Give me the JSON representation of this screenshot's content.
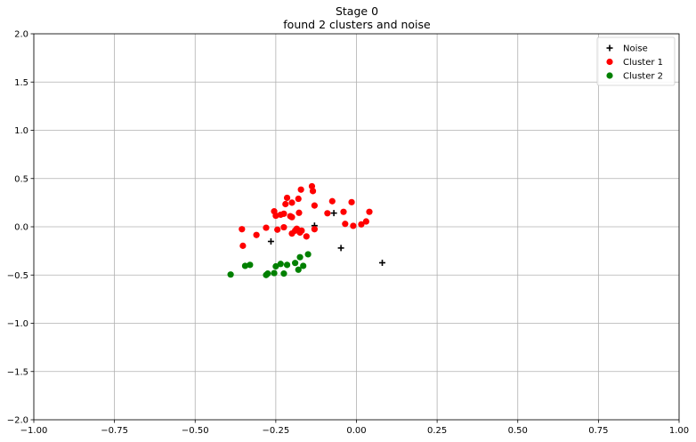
{
  "chart_data": {
    "type": "scatter",
    "title_lines": [
      "Stage 0",
      "found 2 clusters and noise"
    ],
    "xlabel": "",
    "ylabel": "",
    "xlim": [
      -1.0,
      1.0
    ],
    "ylim": [
      -2.0,
      2.0
    ],
    "x_ticks": [
      -1.0,
      -0.75,
      -0.5,
      -0.25,
      0.0,
      0.25,
      0.5,
      0.75,
      1.0
    ],
    "x_tick_labels": [
      "−1.00",
      "−0.75",
      "−0.50",
      "−0.25",
      "0.00",
      "0.25",
      "0.50",
      "0.75",
      "1.00"
    ],
    "y_ticks": [
      -2.0,
      -1.5,
      -1.0,
      -0.5,
      0.0,
      0.5,
      1.0,
      1.5,
      2.0
    ],
    "y_tick_labels": [
      "−2.0",
      "−1.5",
      "−1.0",
      "−0.5",
      "0.0",
      "0.5",
      "1.0",
      "1.5",
      "2.0"
    ],
    "grid": true,
    "legend_position": "top-right",
    "series": [
      {
        "name": "Noise",
        "marker": "plus",
        "color": "#000000",
        "points": [
          [
            -0.265,
            -0.152
          ],
          [
            -0.13,
            0.012
          ],
          [
            -0.07,
            0.142
          ],
          [
            -0.048,
            -0.22
          ],
          [
            0.08,
            -0.373
          ]
        ]
      },
      {
        "name": "Cluster 1",
        "marker": "circle",
        "color": "#ff0000",
        "points": [
          [
            -0.355,
            -0.025
          ],
          [
            -0.352,
            -0.197
          ],
          [
            -0.31,
            -0.085
          ],
          [
            -0.28,
            -0.01
          ],
          [
            -0.255,
            0.16
          ],
          [
            -0.25,
            0.115
          ],
          [
            -0.245,
            -0.03
          ],
          [
            -0.235,
            0.125
          ],
          [
            -0.225,
            0.135
          ],
          [
            -0.225,
            -0.005
          ],
          [
            -0.22,
            0.235
          ],
          [
            -0.215,
            0.3
          ],
          [
            -0.205,
            0.11
          ],
          [
            -0.2,
            0.25
          ],
          [
            -0.2,
            0.1
          ],
          [
            -0.2,
            -0.07
          ],
          [
            -0.19,
            -0.04
          ],
          [
            -0.185,
            -0.02
          ],
          [
            -0.18,
            0.29
          ],
          [
            -0.178,
            0.145
          ],
          [
            -0.175,
            -0.06
          ],
          [
            -0.172,
            0.385
          ],
          [
            -0.17,
            -0.04
          ],
          [
            -0.155,
            -0.1
          ],
          [
            -0.138,
            0.42
          ],
          [
            -0.135,
            0.37
          ],
          [
            -0.13,
            0.22
          ],
          [
            -0.13,
            -0.025
          ],
          [
            -0.09,
            0.14
          ],
          [
            -0.075,
            0.265
          ],
          [
            -0.04,
            0.155
          ],
          [
            -0.035,
            0.03
          ],
          [
            -0.015,
            0.255
          ],
          [
            -0.01,
            0.01
          ],
          [
            0.015,
            0.025
          ],
          [
            0.03,
            0.055
          ],
          [
            0.04,
            0.155
          ]
        ]
      },
      {
        "name": "Cluster 2",
        "marker": "circle",
        "color": "#008000",
        "points": [
          [
            -0.39,
            -0.495
          ],
          [
            -0.345,
            -0.405
          ],
          [
            -0.33,
            -0.395
          ],
          [
            -0.28,
            -0.5
          ],
          [
            -0.275,
            -0.485
          ],
          [
            -0.255,
            -0.48
          ],
          [
            -0.25,
            -0.41
          ],
          [
            -0.235,
            -0.385
          ],
          [
            -0.225,
            -0.485
          ],
          [
            -0.215,
            -0.395
          ],
          [
            -0.19,
            -0.375
          ],
          [
            -0.18,
            -0.445
          ],
          [
            -0.175,
            -0.315
          ],
          [
            -0.165,
            -0.405
          ],
          [
            -0.15,
            -0.285
          ]
        ]
      }
    ]
  }
}
